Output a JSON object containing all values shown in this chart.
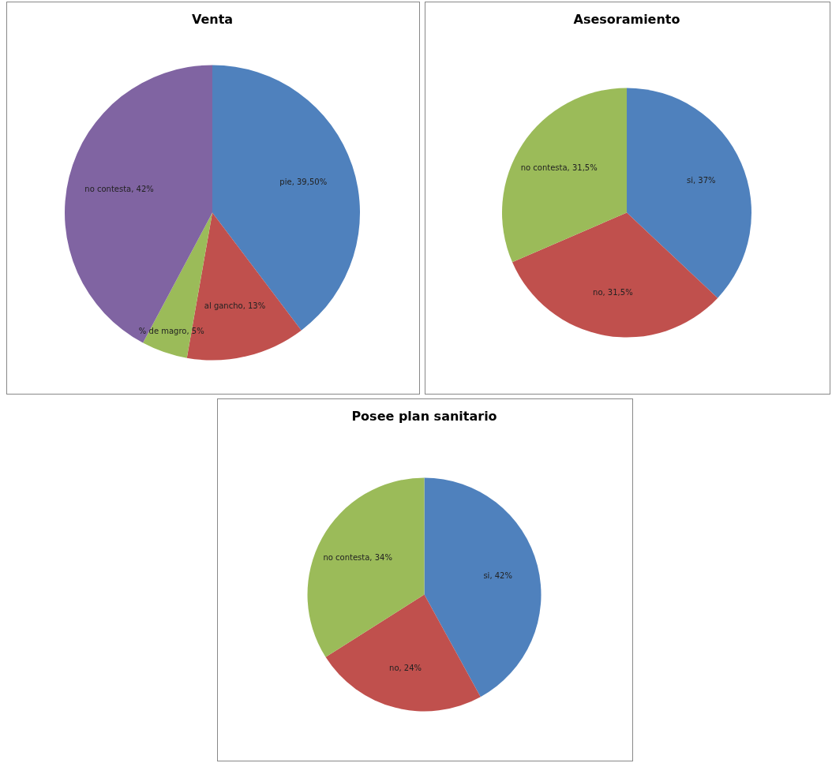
{
  "chart_data": [
    {
      "type": "pie",
      "title": "Venta",
      "categories": [
        "pie",
        "al gancho",
        "% de magro",
        "no contesta"
      ],
      "values": [
        39.5,
        13,
        5,
        42
      ],
      "value_labels": [
        "39,50%",
        "13%",
        "5%",
        "42%"
      ],
      "colors": [
        "#4f81bd",
        "#c0504d",
        "#9bbb59",
        "#8064a2"
      ],
      "legend": false
    },
    {
      "type": "pie",
      "title": "Asesoramiento",
      "categories": [
        "si",
        "no",
        "no contesta"
      ],
      "values": [
        37,
        31.5,
        31.5
      ],
      "value_labels": [
        "37%",
        "31,5%",
        "31,5%"
      ],
      "colors": [
        "#4f81bd",
        "#c0504d",
        "#9bbb59"
      ],
      "legend": false
    },
    {
      "type": "pie",
      "title": "Posee plan sanitario",
      "categories": [
        "si",
        "no",
        "no contesta"
      ],
      "values": [
        42,
        24,
        34
      ],
      "value_labels": [
        "42%",
        "24%",
        "34%"
      ],
      "colors": [
        "#4f81bd",
        "#c0504d",
        "#9bbb59"
      ],
      "legend": false
    }
  ]
}
